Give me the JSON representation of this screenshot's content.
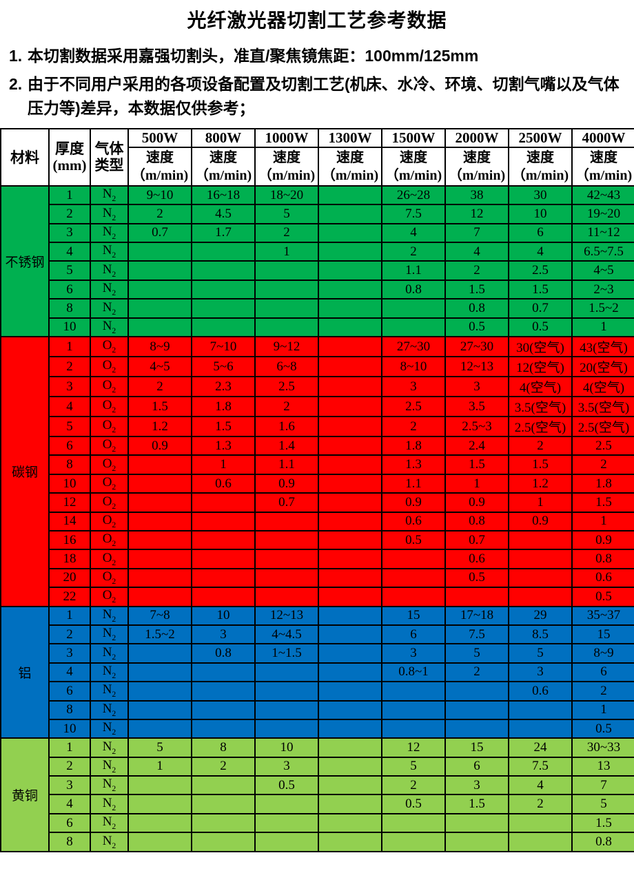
{
  "title": "光纤激光器切割工艺参考数据",
  "notes": [
    {
      "num": "1.",
      "text": "本切割数据采用嘉强切割头，准直/聚焦镜焦距：100mm/125mm"
    },
    {
      "num": "2.",
      "text": "由于不同用户采用的各项设备配置及切割工艺(机床、水冷、环境、切割气嘴以及气体压力等)差异，本数据仅供参考；"
    }
  ],
  "table": {
    "material_label": "材料",
    "thickness_label": [
      "厚度",
      "(mm)"
    ],
    "gas_label": [
      "气体",
      "类型"
    ],
    "powers": [
      "500W",
      "800W",
      "1000W",
      "1300W",
      "1500W",
      "2000W",
      "2500W",
      "4000W"
    ],
    "speed_label": [
      "速度",
      "（m/min)"
    ]
  },
  "colors": {
    "stainless": "#00B050",
    "carbon": "#FF0000",
    "aluminum": "#0070C0",
    "brass": "#92D050",
    "border": "#000000",
    "text": "#000000"
  },
  "sections": [
    {
      "name": "不锈钢",
      "color": "#00B050",
      "rows": [
        {
          "thickness": "1",
          "gas": "N2",
          "speeds": [
            "9~10",
            "16~18",
            "18~20",
            "",
            "26~28",
            "38",
            "30",
            "42~43"
          ]
        },
        {
          "thickness": "2",
          "gas": "N2",
          "speeds": [
            "2",
            "4.5",
            "5",
            "",
            "7.5",
            "12",
            "10",
            "19~20"
          ]
        },
        {
          "thickness": "3",
          "gas": "N2",
          "speeds": [
            "0.7",
            "1.7",
            "2",
            "",
            "4",
            "7",
            "6",
            "11~12"
          ]
        },
        {
          "thickness": "4",
          "gas": "N2",
          "speeds": [
            "",
            "",
            "1",
            "",
            "2",
            "4",
            "4",
            "6.5~7.5"
          ]
        },
        {
          "thickness": "5",
          "gas": "N2",
          "speeds": [
            "",
            "",
            "",
            "",
            "1.1",
            "2",
            "2.5",
            "4~5"
          ]
        },
        {
          "thickness": "6",
          "gas": "N2",
          "speeds": [
            "",
            "",
            "",
            "",
            "0.8",
            "1.5",
            "1.5",
            "2~3"
          ]
        },
        {
          "thickness": "8",
          "gas": "N2",
          "speeds": [
            "",
            "",
            "",
            "",
            "",
            "0.8",
            "0.7",
            "1.5~2"
          ]
        },
        {
          "thickness": "10",
          "gas": "N2",
          "speeds": [
            "",
            "",
            "",
            "",
            "",
            "0.5",
            "0.5",
            "1"
          ]
        }
      ]
    },
    {
      "name": "碳钢",
      "color": "#FF0000",
      "rows": [
        {
          "thickness": "1",
          "gas": "O2",
          "speeds": [
            "8~9",
            "7~10",
            "9~12",
            "",
            "27~30",
            "27~30",
            "30(空气)",
            "43(空气)"
          ]
        },
        {
          "thickness": "2",
          "gas": "O2",
          "speeds": [
            "4~5",
            "5~6",
            "6~8",
            "",
            "8~10",
            "12~13",
            "12(空气)",
            "20(空气)"
          ]
        },
        {
          "thickness": "3",
          "gas": "O2",
          "speeds": [
            "2",
            "2.3",
            "2.5",
            "",
            "3",
            "3",
            "4(空气)",
            "4(空气)"
          ]
        },
        {
          "thickness": "4",
          "gas": "O2",
          "speeds": [
            "1.5",
            "1.8",
            "2",
            "",
            "2.5",
            "3.5",
            "3.5(空气)",
            "3.5(空气)"
          ]
        },
        {
          "thickness": "5",
          "gas": "O2",
          "speeds": [
            "1.2",
            "1.5",
            "1.6",
            "",
            "2",
            "2.5~3",
            "2.5(空气)",
            "2.5(空气)"
          ]
        },
        {
          "thickness": "6",
          "gas": "O2",
          "speeds": [
            "0.9",
            "1.3",
            "1.4",
            "",
            "1.8",
            "2.4",
            "2",
            "2.5"
          ]
        },
        {
          "thickness": "8",
          "gas": "O2",
          "speeds": [
            "",
            "1",
            "1.1",
            "",
            "1.3",
            "1.5",
            "1.5",
            "2"
          ]
        },
        {
          "thickness": "10",
          "gas": "O2",
          "speeds": [
            "",
            "0.6",
            "0.9",
            "",
            "1.1",
            "1",
            "1.2",
            "1.8"
          ]
        },
        {
          "thickness": "12",
          "gas": "O2",
          "speeds": [
            "",
            "",
            "0.7",
            "",
            "0.9",
            "0.9",
            "1",
            "1.5"
          ]
        },
        {
          "thickness": "14",
          "gas": "O2",
          "speeds": [
            "",
            "",
            "",
            "",
            "0.6",
            "0.8",
            "0.9",
            "1"
          ]
        },
        {
          "thickness": "16",
          "gas": "O2",
          "speeds": [
            "",
            "",
            "",
            "",
            "0.5",
            "0.7",
            "",
            "0.9"
          ]
        },
        {
          "thickness": "18",
          "gas": "O2",
          "speeds": [
            "",
            "",
            "",
            "",
            "",
            "0.6",
            "",
            "0.8"
          ]
        },
        {
          "thickness": "20",
          "gas": "O2",
          "speeds": [
            "",
            "",
            "",
            "",
            "",
            "0.5",
            "",
            "0.6"
          ]
        },
        {
          "thickness": "22",
          "gas": "O2",
          "speeds": [
            "",
            "",
            "",
            "",
            "",
            "",
            "",
            "0.5"
          ]
        }
      ]
    },
    {
      "name": "铝",
      "color": "#0070C0",
      "rows": [
        {
          "thickness": "1",
          "gas": "N2",
          "speeds": [
            "7~8",
            "10",
            "12~13",
            "",
            "15",
            "17~18",
            "29",
            "35~37"
          ]
        },
        {
          "thickness": "2",
          "gas": "N2",
          "speeds": [
            "1.5~2",
            "3",
            "4~4.5",
            "",
            "6",
            "7.5",
            "8.5",
            "15"
          ]
        },
        {
          "thickness": "3",
          "gas": "N2",
          "speeds": [
            "",
            "0.8",
            "1~1.5",
            "",
            "3",
            "5",
            "5",
            "8~9"
          ]
        },
        {
          "thickness": "4",
          "gas": "N2",
          "speeds": [
            "",
            "",
            "",
            "",
            "0.8~1",
            "2",
            "3",
            "6"
          ]
        },
        {
          "thickness": "6",
          "gas": "N2",
          "speeds": [
            "",
            "",
            "",
            "",
            "",
            "",
            "0.6",
            "2"
          ]
        },
        {
          "thickness": "8",
          "gas": "N2",
          "speeds": [
            "",
            "",
            "",
            "",
            "",
            "",
            "",
            "1"
          ]
        },
        {
          "thickness": "10",
          "gas": "N2",
          "speeds": [
            "",
            "",
            "",
            "",
            "",
            "",
            "",
            "0.5"
          ]
        }
      ]
    },
    {
      "name": "黄铜",
      "color": "#92D050",
      "rows": [
        {
          "thickness": "1",
          "gas": "N2",
          "speeds": [
            "5",
            "8",
            "10",
            "",
            "12",
            "15",
            "24",
            "30~33"
          ]
        },
        {
          "thickness": "2",
          "gas": "N2",
          "speeds": [
            "1",
            "2",
            "3",
            "",
            "5",
            "6",
            "7.5",
            "13"
          ]
        },
        {
          "thickness": "3",
          "gas": "N2",
          "speeds": [
            "",
            "",
            "0.5",
            "",
            "2",
            "3",
            "4",
            "7"
          ]
        },
        {
          "thickness": "4",
          "gas": "N2",
          "speeds": [
            "",
            "",
            "",
            "",
            "0.5",
            "1.5",
            "2",
            "5"
          ]
        },
        {
          "thickness": "6",
          "gas": "N2",
          "speeds": [
            "",
            "",
            "",
            "",
            "",
            "",
            "",
            "1.5"
          ]
        },
        {
          "thickness": "8",
          "gas": "N2",
          "speeds": [
            "",
            "",
            "",
            "",
            "",
            "",
            "",
            "0.8"
          ]
        }
      ]
    }
  ]
}
